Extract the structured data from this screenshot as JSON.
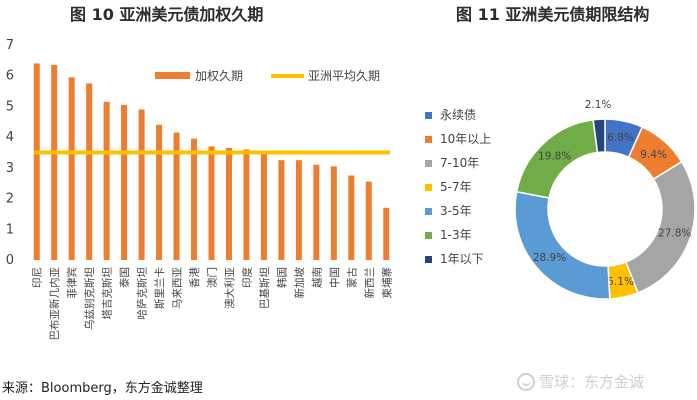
{
  "titles": {
    "left": "图 10  亚洲美元债加权久期",
    "right": "图 11  亚洲美元债期限结构"
  },
  "source": "来源：Bloomberg，东方金诚整理",
  "watermark": "雪球：东方金诚",
  "colors": {
    "bar": "#ED7D31",
    "average_line": "#FFC000"
  },
  "chart_data": [
    {
      "type": "bar",
      "title": "图 10  亚洲美元债加权久期",
      "categories": [
        "印尼",
        "巴布亚新几内亚",
        "菲律宾",
        "乌兹别克斯坦",
        "塔吉克斯坦",
        "泰国",
        "哈萨克斯坦",
        "斯里兰卡",
        "马来西亚",
        "香港",
        "澳门",
        "澳大利亚",
        "印度",
        "巴基斯坦",
        "韩国",
        "新加坡",
        "越南",
        "中国",
        "蒙古",
        "新西兰",
        "柬埔寨"
      ],
      "series": [
        {
          "name": "加权久期",
          "values": [
            6.4,
            6.35,
            5.95,
            5.75,
            5.15,
            5.05,
            4.9,
            4.4,
            4.15,
            3.95,
            3.7,
            3.65,
            3.6,
            3.55,
            3.25,
            3.25,
            3.1,
            3.05,
            2.75,
            2.55,
            1.7
          ]
        },
        {
          "name": "亚洲平均久期",
          "type": "line",
          "value": 3.5
        }
      ],
      "yticks": [
        "0",
        "1",
        "2",
        "3",
        "4",
        "5",
        "6",
        "7"
      ],
      "ylim": [
        0,
        7
      ],
      "legend": "top-right"
    },
    {
      "type": "pie",
      "title": "图 11  亚洲美元债期限结构",
      "labels": [
        "永续债",
        "10年以上",
        "7-10年",
        "5-7年",
        "3-5年",
        "1-3年",
        "1年以下"
      ],
      "values": [
        6.8,
        9.4,
        27.8,
        5.1,
        28.9,
        19.8,
        2.1
      ],
      "value_labels": [
        "6.8%",
        "9.4%",
        "27.8%",
        "5.1%",
        "28.9%",
        "19.8%",
        "2.1%"
      ],
      "colors": [
        "#4472C4",
        "#ED7D31",
        "#A5A5A5",
        "#FFC000",
        "#5B9BD5",
        "#70AD47",
        "#264478"
      ],
      "legend": "left"
    }
  ]
}
